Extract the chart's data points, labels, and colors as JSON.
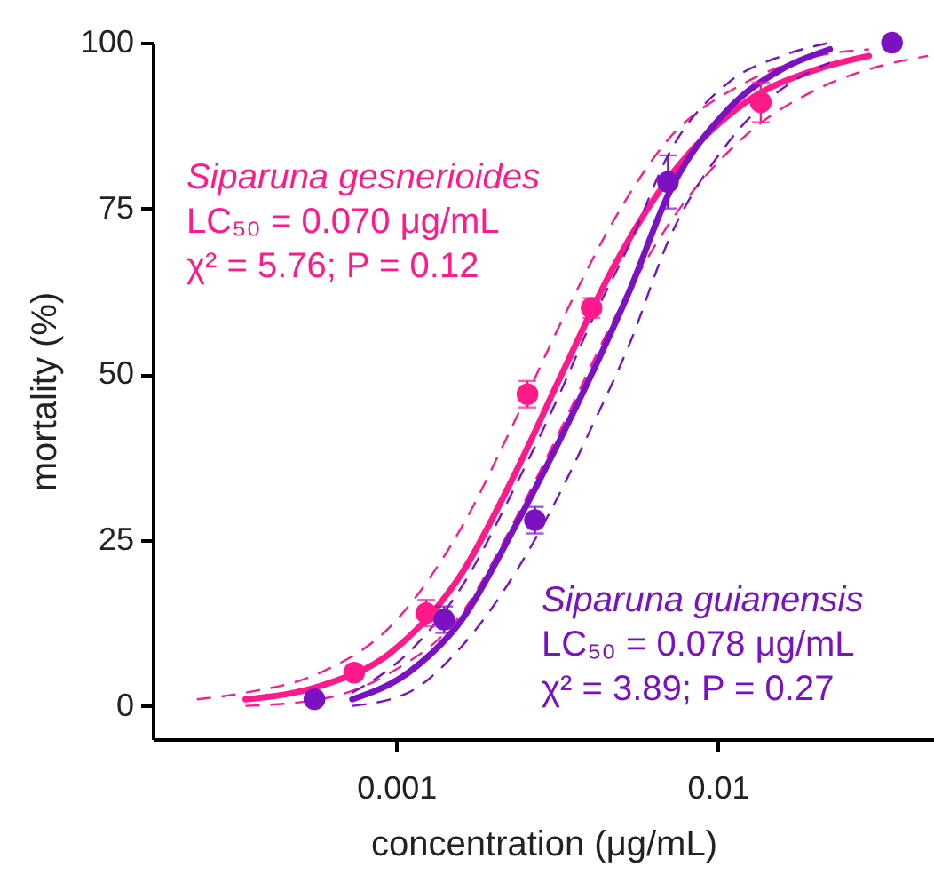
{
  "chart_data": {
    "type": "scatter",
    "xlabel": "concentration (μg/mL)",
    "ylabel": "mortality (%)",
    "log": "x",
    "xlim": [
      0.000175,
      0.047
    ],
    "xticks": [
      0.001,
      0.01
    ],
    "ylim": [
      -5,
      100
    ],
    "yticks": [
      0,
      25,
      50,
      75,
      100
    ],
    "series": [
      {
        "type": "line",
        "color": "#ff1a8c",
        "x": [
          0.00034,
          0.00058,
          0.00096,
          0.0016,
          0.00234,
          0.00327,
          0.00472,
          0.0069,
          0.0122,
          0.0204,
          0.0295
        ],
        "values": [
          1,
          3,
          8,
          20,
          35,
          50,
          66,
          79,
          91,
          96,
          98
        ]
      },
      {
        "type": "line",
        "line_style": "dashed",
        "color": "#ff1a8c",
        "x": [
          0.00024,
          0.00034,
          0.00058,
          0.00096,
          0.0016,
          0.00234,
          0.00327,
          0.00472,
          0.0069,
          0.0122,
          0.0204,
          0.0295
        ],
        "values": [
          1,
          2,
          5,
          12,
          27,
          43,
          58,
          73,
          85,
          94,
          98,
          99
        ]
      },
      {
        "type": "line",
        "line_style": "dashed",
        "color": "#ff1a8c",
        "x": [
          0.00034,
          0.00058,
          0.00096,
          0.0016,
          0.00234,
          0.00327,
          0.00472,
          0.0069,
          0.0122,
          0.0204,
          0.0295,
          0.045
        ],
        "values": [
          0,
          1,
          5,
          14,
          28,
          42,
          58,
          72,
          86,
          93,
          96,
          98
        ]
      },
      {
        "type": "line",
        "color": "#7a12c4",
        "x": [
          0.00073,
          0.00109,
          0.0016,
          0.00234,
          0.00322,
          0.00405,
          0.00536,
          0.007,
          0.0108,
          0.0158,
          0.0223
        ],
        "values": [
          1,
          5,
          13,
          27,
          40,
          50,
          63,
          77,
          90,
          96,
          99
        ]
      },
      {
        "type": "line",
        "line_style": "dashed",
        "color": "#7a12c4",
        "x": [
          0.00073,
          0.00109,
          0.0016,
          0.00234,
          0.00322,
          0.00405,
          0.00536,
          0.007,
          0.0108,
          0.0158,
          0.0223
        ],
        "values": [
          2,
          8,
          18,
          33,
          47,
          58,
          70,
          83,
          94,
          98,
          100
        ]
      },
      {
        "type": "line",
        "line_style": "dashed",
        "color": "#7a12c4",
        "x": [
          0.00073,
          0.00109,
          0.0016,
          0.00234,
          0.00322,
          0.00405,
          0.00536,
          0.007,
          0.0108,
          0.0158,
          0.0223
        ],
        "values": [
          0,
          2,
          9,
          20,
          32,
          42,
          55,
          70,
          85,
          93,
          97
        ]
      },
      {
        "name": "Siparuna gesnerioides",
        "marker": "circle",
        "color": "#ff1a8c",
        "x": [
          0.00074,
          0.00124,
          0.00256,
          0.00405,
          0.0136
        ],
        "values": [
          5,
          14,
          47,
          60,
          91
        ],
        "errors": [
          1,
          2,
          2,
          1.5,
          3
        ]
      },
      {
        "name": "Siparuna guianensis",
        "marker": "circle",
        "color": "#7a12c4",
        "x": [
          0.000557,
          0.00141,
          0.0027,
          0.007,
          0.0348
        ],
        "values": [
          1,
          13,
          28,
          79,
          100
        ],
        "errors": [
          null,
          2,
          2,
          4,
          null
        ]
      }
    ],
    "annotations": [
      "LC₅₀ = 0.070 μg/mL",
      "χ² = 5.76; P = 0.12",
      "LC₅₀ = 0.078 μg/mL",
      "χ² = 3.89; P = 0.27"
    ],
    "grid": false
  }
}
